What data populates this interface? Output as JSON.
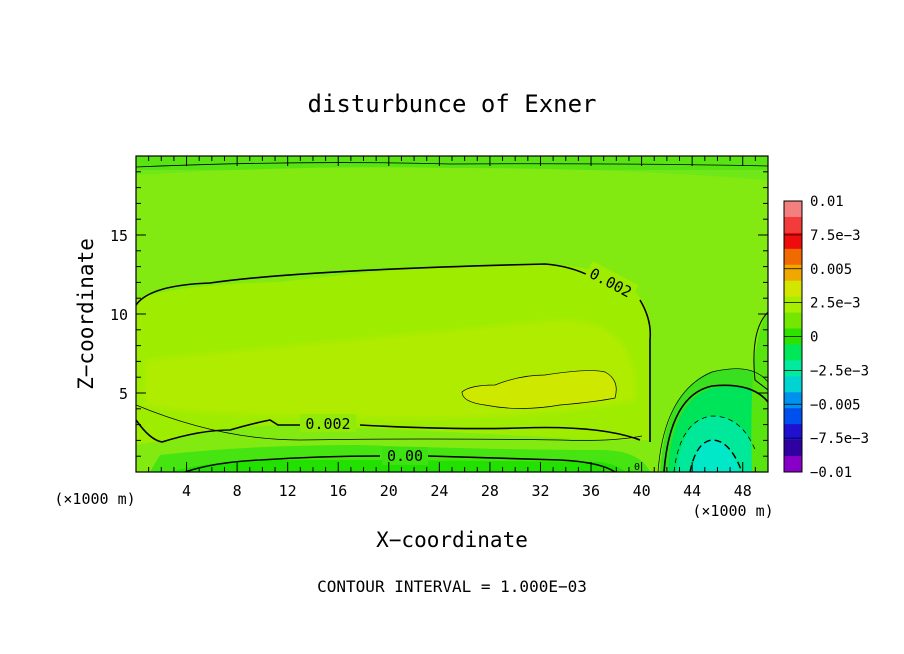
{
  "chart_data": {
    "type": "heatmap",
    "title": "disturbunce of Exner",
    "xlabel": "X−coordinate",
    "ylabel": "Z−coordinate",
    "x_unit": "(×1000 m)",
    "footer": "CONTOUR INTERVAL = 1.000E−03",
    "xlim": [
      0,
      50
    ],
    "ylim": [
      0,
      20
    ],
    "x_ticks": [
      4,
      8,
      12,
      16,
      20,
      24,
      28,
      32,
      36,
      40,
      44,
      48
    ],
    "y_ticks": [
      5,
      10,
      15
    ],
    "colorbar": {
      "labels": [
        "0.01",
        "7.5e−3",
        "0.005",
        "2.5e−3",
        "0",
        "−2.5e−3",
        "−0.005",
        "−7.5e−3",
        "−0.01"
      ],
      "levels": [
        0.01,
        0.0075,
        0.005,
        0.0025,
        0,
        -0.0025,
        -0.005,
        -0.0075,
        -0.01
      ],
      "colors": [
        "#f47f7f",
        "#f23b3b",
        "#ee0c0c",
        "#f06a00",
        "#f0a800",
        "#d2e600",
        "#a8ee00",
        "#74e600",
        "#2ee200",
        "#00e85a",
        "#00eaa0",
        "#00d4d0",
        "#0090ee",
        "#0050f0",
        "#2010d0",
        "#3000a0",
        "#8800c8"
      ]
    },
    "contour_labels": [
      "0.002",
      "0.002",
      "0.00",
      "0"
    ],
    "contour_interval": 0.001,
    "features": {
      "positive_maximum_region": "x 26–38, z 3.5–5.5",
      "negative_minimum_region": "x 42–50, z 0–5"
    }
  }
}
